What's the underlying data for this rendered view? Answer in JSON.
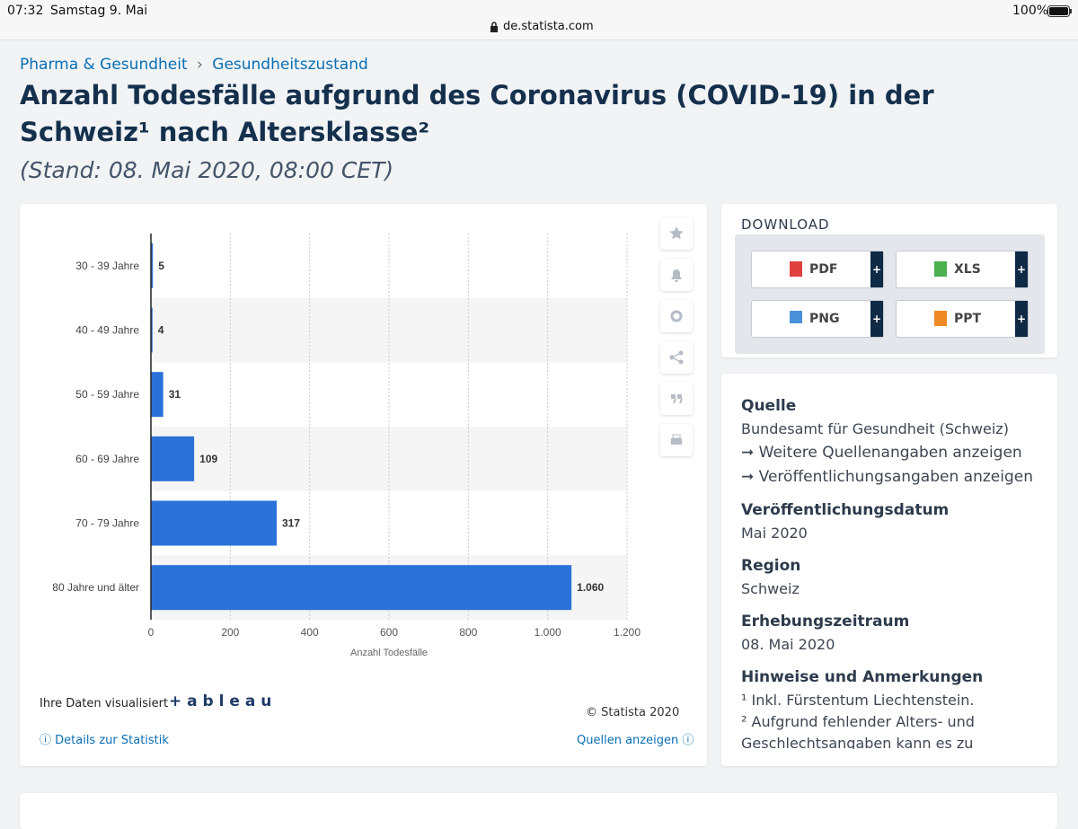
{
  "status_bar": {
    "time": "07:32",
    "date": "Samstag 9. Mai",
    "url": "de.statista.com",
    "battery": "100%"
  },
  "breadcrumb": [
    "Pharma & Gesundheit",
    "Gesundheitszustand"
  ],
  "title": "Anzahl Todesfälle aufgrund des Coronavirus (COVID-19) in der Schweiz¹ nach Altersklasse²",
  "subtitle": "(Stand: 08. Mai 2020, 08:00 CET)",
  "chart_data": {
    "type": "bar",
    "orientation": "horizontal",
    "categories": [
      "30 - 39 Jahre",
      "40 - 49 Jahre",
      "50 - 59 Jahre",
      "60 - 69 Jahre",
      "70 - 79 Jahre",
      "80 Jahre und älter"
    ],
    "values": [
      5,
      4,
      31,
      109,
      317,
      1060
    ],
    "value_labels": [
      "5",
      "4",
      "31",
      "109",
      "317",
      "1.060"
    ],
    "color": "#2b72d8",
    "xlim": [
      0,
      1200
    ],
    "xticks": [
      0,
      200,
      400,
      600,
      800,
      {
        "value": 1000,
        "label": "1.000"
      },
      {
        "value": 1200,
        "label": "1.200"
      }
    ],
    "xlabel": "Anzahl Todesfälle",
    "grid": true
  },
  "chart_footer": {
    "visualized": "Ihre Daten visualisiert",
    "tableau": "+ a b l e a u",
    "copyright": "© Statista 2020",
    "details": "Details zur Statistik",
    "sources": "Quellen anzeigen"
  },
  "download": {
    "title": "DOWNLOAD",
    "buttons": [
      "PDF",
      "XLS",
      "PNG",
      "PPT"
    ]
  },
  "info": {
    "source_title": "Quelle",
    "source": "Bundesamt für Gesundheit (Schweiz)",
    "links": [
      "Weitere Quellenangaben anzeigen",
      "Veröffentlichungsangaben anzeigen"
    ],
    "sections": [
      {
        "title": "Veröffentlichungsdatum",
        "text": "Mai 2020"
      },
      {
        "title": "Region",
        "text": "Schweiz"
      },
      {
        "title": "Erhebungszeitraum",
        "text": "08. Mai 2020"
      }
    ],
    "notes_title": "Hinweise und Anmerkungen",
    "notes": [
      "¹ Inkl. Fürstentum Liechtenstein.",
      "² Aufgrund fehlender Alters- und",
      "Geschlechtsangaben kann es zu"
    ]
  }
}
